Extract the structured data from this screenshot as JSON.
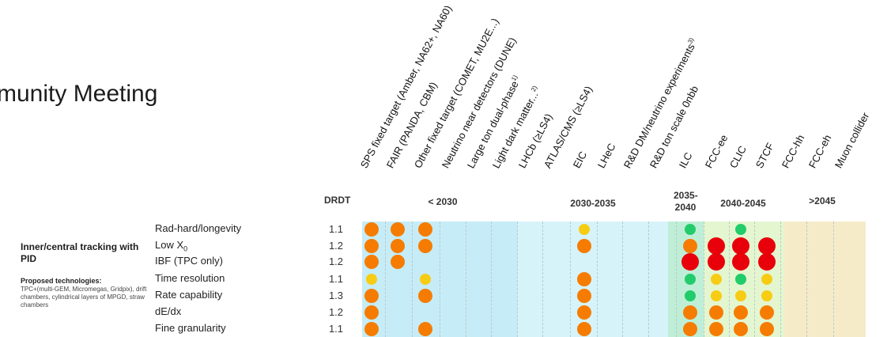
{
  "title": "munity Meeting",
  "drdt_header": "DRDT",
  "experiments": [
    {
      "label": "SPS fixed target (Amber, NA62+, NA60)",
      "sup": ""
    },
    {
      "label": "FAIR (PANDA, CBM)",
      "sup": ""
    },
    {
      "label": "Other fixed target (COMET, MU2E...)",
      "sup": ""
    },
    {
      "label": "Neutrino near detectors (DUNE)",
      "sup": ""
    },
    {
      "label": "Large ton dual-phase",
      "sup": "1)"
    },
    {
      "label": "Light dark matter...",
      "sup": "2)"
    },
    {
      "label": "LHCb (≥LS4)",
      "sup": ""
    },
    {
      "label": "ATLAS/CMS (≥LS4)",
      "sup": ""
    },
    {
      "label": "EIC",
      "sup": ""
    },
    {
      "label": "LHeC",
      "sup": ""
    },
    {
      "label": "R&D DM/neutrino experiments",
      "sup": "3)"
    },
    {
      "label": "R&D ton scale 0nbb",
      "sup": ""
    },
    {
      "label": "ILC",
      "sup": ""
    },
    {
      "label": "FCC-ee",
      "sup": ""
    },
    {
      "label": "CLIC",
      "sup": ""
    },
    {
      "label": "STCF",
      "sup": ""
    },
    {
      "label": "FCC-hh",
      "sup": ""
    },
    {
      "label": "FCC-eh",
      "sup": ""
    },
    {
      "label": "Muon collider",
      "sup": ""
    }
  ],
  "periods": [
    {
      "label": "< 2030",
      "color": "#c6ecf7"
    },
    {
      "label": "2030-2035",
      "color": "#d6f3fa"
    },
    {
      "label": "2035-2040",
      "color": "#bfeed7"
    },
    {
      "label": "2040-2045",
      "color": "#e4f6cf"
    },
    {
      "label": ">2045",
      "color": "#f6ebc8"
    }
  ],
  "group": {
    "title": "Inner/central tracking with PID",
    "tech_title": "Proposed technologies:",
    "tech_list": "TPC+(multi-GEM, Micromegas, Gridpix), drift chambers, cylindrical layers of MPGD, straw chambers"
  },
  "rows": [
    {
      "label": "Rad-hard/longevity",
      "sub": "",
      "drdt": "1.1",
      "dots": [
        [
          0,
          "orange",
          "m"
        ],
        [
          1,
          "orange",
          "m"
        ],
        [
          2,
          "orange",
          "m"
        ],
        [
          8,
          "yellow",
          "s"
        ],
        [
          12,
          "green",
          "s"
        ],
        [
          14,
          "green",
          "s"
        ]
      ]
    },
    {
      "label": "Low X",
      "sub": "0",
      "drdt": "1.2",
      "dots": [
        [
          0,
          "orange",
          "m"
        ],
        [
          1,
          "orange",
          "m"
        ],
        [
          2,
          "orange",
          "m"
        ],
        [
          8,
          "orange",
          "m"
        ],
        [
          12,
          "orange",
          "m"
        ],
        [
          13,
          "red",
          "l"
        ],
        [
          14,
          "red",
          "l"
        ],
        [
          15,
          "red",
          "l"
        ]
      ]
    },
    {
      "label": "IBF (TPC only)",
      "sub": "",
      "drdt": "1.2",
      "dots": [
        [
          0,
          "orange",
          "m"
        ],
        [
          1,
          "orange",
          "m"
        ],
        [
          12,
          "red",
          "l"
        ],
        [
          13,
          "red",
          "l"
        ],
        [
          14,
          "red",
          "l"
        ],
        [
          15,
          "red",
          "l"
        ]
      ]
    },
    {
      "label": "Time resolution",
      "sub": "",
      "drdt": "1.1",
      "dots": [
        [
          0,
          "yellow",
          "s"
        ],
        [
          2,
          "yellow",
          "s"
        ],
        [
          8,
          "orange",
          "m"
        ],
        [
          12,
          "green",
          "s"
        ],
        [
          13,
          "yellow",
          "s"
        ],
        [
          14,
          "green",
          "s"
        ],
        [
          15,
          "yellow",
          "s"
        ]
      ]
    },
    {
      "label": "Rate capability",
      "sub": "",
      "drdt": "1.3",
      "dots": [
        [
          0,
          "orange",
          "m"
        ],
        [
          2,
          "orange",
          "m"
        ],
        [
          8,
          "orange",
          "m"
        ],
        [
          12,
          "green",
          "s"
        ],
        [
          13,
          "yellow",
          "s"
        ],
        [
          14,
          "yellow",
          "s"
        ],
        [
          15,
          "yellow",
          "s"
        ]
      ]
    },
    {
      "label": "dE/dx",
      "sub": "",
      "drdt": "1.2",
      "dots": [
        [
          0,
          "orange",
          "m"
        ],
        [
          8,
          "orange",
          "m"
        ],
        [
          12,
          "orange",
          "m"
        ],
        [
          13,
          "orange",
          "m"
        ],
        [
          14,
          "orange",
          "m"
        ],
        [
          15,
          "orange",
          "m"
        ]
      ]
    },
    {
      "label": "Fine granularity",
      "sub": "",
      "drdt": "1.1",
      "dots": [
        [
          0,
          "orange",
          "m"
        ],
        [
          2,
          "orange",
          "m"
        ],
        [
          8,
          "orange",
          "m"
        ],
        [
          12,
          "orange",
          "m"
        ],
        [
          13,
          "orange",
          "m"
        ],
        [
          14,
          "orange",
          "m"
        ],
        [
          15,
          "orange",
          "m"
        ]
      ]
    }
  ],
  "dot_colors": {
    "orange": "#f57c00",
    "yellow": "#f7cc14",
    "green": "#22cc6a",
    "red": "#e8000b"
  }
}
